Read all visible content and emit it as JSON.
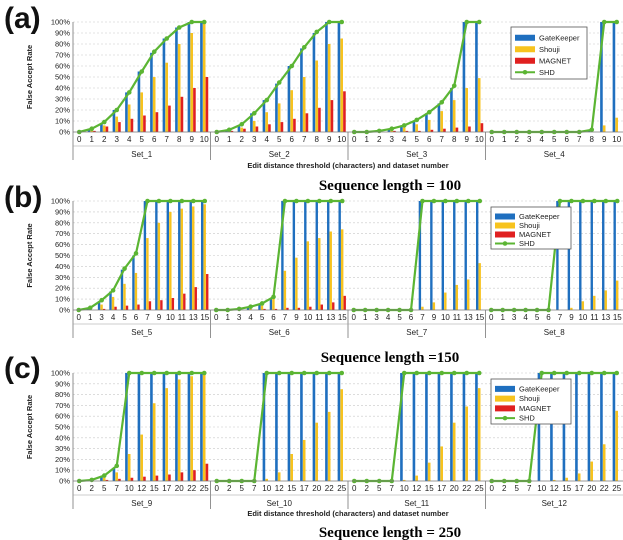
{
  "colors": {
    "GateKeeper": "#1f6fbf",
    "Shouji": "#f7c31e",
    "MAGNET": "#e02020",
    "SHD": "#5bb533"
  },
  "chart_data": [
    {
      "panel": "(a)",
      "type": "bar",
      "caption": "Sequence length = 100",
      "xlabel": "Edit distance threshold (characters) and dataset number",
      "ylabel": "False Accept Rate",
      "ylim": [
        0,
        100
      ],
      "yticks": [
        "0%",
        "10%",
        "20%",
        "30%",
        "40%",
        "50%",
        "60%",
        "70%",
        "80%",
        "90%",
        "100%"
      ],
      "legend": [
        "GateKeeper",
        "Shouji",
        "MAGNET",
        "SHD"
      ],
      "legend_position": "top-right",
      "categories": [
        "0",
        "1",
        "2",
        "3",
        "4",
        "5",
        "6",
        "7",
        "8",
        "9",
        "10"
      ],
      "groups": [
        {
          "name": "Set_1",
          "GateKeeper": [
            0,
            3,
            8,
            20,
            36,
            55,
            72,
            85,
            95,
            100,
            100
          ],
          "Shouji": [
            0,
            2,
            6,
            14,
            25,
            36,
            50,
            63,
            80,
            90,
            100
          ],
          "MAGNET": [
            0,
            1,
            5,
            9,
            12,
            15,
            18,
            24,
            32,
            40,
            50
          ],
          "SHD": [
            0,
            3,
            9,
            20,
            36,
            55,
            73,
            85,
            95,
            100,
            100
          ]
        },
        {
          "name": "Set_2",
          "GateKeeper": [
            0,
            2,
            6,
            17,
            29,
            44,
            60,
            76,
            90,
            100,
            100
          ],
          "Shouji": [
            0,
            1,
            4,
            10,
            18,
            26,
            38,
            50,
            65,
            80,
            85
          ],
          "MAGNET": [
            0,
            1,
            3,
            5,
            7,
            9,
            12,
            17,
            22,
            29,
            37
          ],
          "SHD": [
            0,
            2,
            7,
            17,
            29,
            45,
            60,
            77,
            91,
            100,
            100
          ]
        },
        {
          "name": "Set_3",
          "GateKeeper": [
            0,
            0,
            1,
            3,
            6,
            10,
            17,
            26,
            40,
            100,
            100
          ],
          "Shouji": [
            0,
            0,
            1,
            2,
            4,
            7,
            11,
            19,
            29,
            40,
            49
          ],
          "MAGNET": [
            0,
            0,
            0,
            1,
            1,
            1,
            2,
            3,
            4,
            5,
            8
          ],
          "SHD": [
            0,
            0,
            1,
            3,
            6,
            11,
            18,
            27,
            42,
            100,
            100
          ]
        },
        {
          "name": "Set_4",
          "GateKeeper": [
            0,
            0,
            0,
            0,
            0,
            0,
            0,
            0,
            1,
            100,
            100
          ],
          "Shouji": [
            0,
            0,
            0,
            0,
            0,
            0,
            0,
            0,
            0,
            6,
            13
          ],
          "MAGNET": [
            0,
            0,
            0,
            0,
            0,
            0,
            0,
            0,
            0,
            0,
            0
          ],
          "SHD": [
            0,
            0,
            0,
            0,
            0,
            0,
            0,
            0,
            2,
            100,
            100
          ]
        }
      ]
    },
    {
      "panel": "(b)",
      "type": "bar",
      "caption": "Sequence length =150",
      "xlabel": "",
      "ylabel": "False Accept Rate",
      "ylim": [
        0,
        100
      ],
      "yticks": [
        "0%",
        "10%",
        "20%",
        "30%",
        "40%",
        "50%",
        "60%",
        "70%",
        "80%",
        "90%",
        "100%"
      ],
      "legend": [
        "GateKeeper",
        "Shouji",
        "MAGNET",
        "SHD"
      ],
      "legend_position": "top-center",
      "categories": [
        "0",
        "1",
        "3",
        "4",
        "5",
        "6",
        "7",
        "9",
        "10",
        "11",
        "13",
        "15"
      ],
      "groups": [
        {
          "name": "Set_5",
          "GateKeeper": [
            0,
            2,
            8,
            17,
            37,
            50,
            100,
            100,
            100,
            100,
            100,
            100
          ],
          "Shouji": [
            0,
            1,
            5,
            12,
            24,
            34,
            66,
            80,
            90,
            93,
            95,
            97
          ],
          "MAGNET": [
            0,
            0,
            1,
            3,
            4,
            5,
            8,
            9,
            11,
            15,
            21,
            33
          ],
          "SHD": [
            0,
            2,
            9,
            18,
            38,
            52,
            100,
            100,
            100,
            100,
            100,
            100
          ]
        },
        {
          "name": "Set_6",
          "GateKeeper": [
            0,
            0,
            1,
            2,
            5,
            10,
            100,
            100,
            100,
            100,
            100,
            100
          ],
          "Shouji": [
            0,
            0,
            1,
            1,
            4,
            13,
            36,
            48,
            63,
            66,
            72,
            74
          ],
          "MAGNET": [
            0,
            0,
            0,
            0,
            1,
            1,
            2,
            2,
            3,
            5,
            7,
            13
          ],
          "SHD": [
            0,
            0,
            1,
            3,
            6,
            12,
            100,
            100,
            100,
            100,
            100,
            100
          ]
        },
        {
          "name": "Set_7",
          "GateKeeper": [
            0,
            0,
            0,
            0,
            0,
            0,
            100,
            100,
            100,
            100,
            100,
            100
          ],
          "Shouji": [
            0,
            0,
            0,
            0,
            0,
            0,
            3,
            7,
            16,
            23,
            28,
            43
          ],
          "MAGNET": [
            0,
            0,
            0,
            0,
            0,
            0,
            0,
            0,
            0,
            0,
            0,
            0
          ],
          "SHD": [
            0,
            0,
            0,
            0,
            0,
            0,
            100,
            100,
            100,
            100,
            100,
            100
          ]
        },
        {
          "name": "Set_8",
          "GateKeeper": [
            0,
            0,
            0,
            0,
            0,
            0,
            100,
            100,
            100,
            100,
            100,
            100
          ],
          "Shouji": [
            0,
            0,
            0,
            0,
            0,
            0,
            0,
            2,
            8,
            13,
            18,
            27
          ],
          "MAGNET": [
            0,
            0,
            0,
            0,
            0,
            0,
            0,
            0,
            0,
            0,
            0,
            0
          ],
          "SHD": [
            0,
            0,
            0,
            0,
            0,
            0,
            100,
            100,
            100,
            100,
            100,
            100
          ]
        }
      ]
    },
    {
      "panel": "(c)",
      "type": "bar",
      "caption": "Sequence length = 250",
      "xlabel": "Edit distance threshold (characters) and dataset number",
      "ylabel": "False Accept Rate",
      "ylim": [
        0,
        100
      ],
      "yticks": [
        "0%",
        "10%",
        "20%",
        "30%",
        "40%",
        "50%",
        "60%",
        "70%",
        "80%",
        "90%",
        "100%"
      ],
      "legend": [
        "GateKeeper",
        "Shouji",
        "MAGNET",
        "SHD"
      ],
      "legend_position": "top-right",
      "categories": [
        "0",
        "2",
        "5",
        "7",
        "10",
        "12",
        "15",
        "17",
        "20",
        "22",
        "25"
      ],
      "groups": [
        {
          "name": "Set_9",
          "GateKeeper": [
            0,
            1,
            4,
            12,
            100,
            100,
            100,
            100,
            100,
            100,
            100
          ],
          "Shouji": [
            0,
            1,
            3,
            8,
            25,
            43,
            72,
            86,
            94,
            97,
            100
          ],
          "MAGNET": [
            0,
            0,
            1,
            2,
            3,
            4,
            5,
            6,
            8,
            10,
            16
          ],
          "SHD": [
            0,
            1,
            5,
            14,
            100,
            100,
            100,
            100,
            100,
            100,
            100
          ]
        },
        {
          "name": "Set_10",
          "GateKeeper": [
            0,
            0,
            0,
            0,
            100,
            100,
            100,
            100,
            100,
            100,
            100
          ],
          "Shouji": [
            0,
            0,
            0,
            0,
            2,
            8,
            25,
            38,
            54,
            64,
            85
          ],
          "MAGNET": [
            0,
            0,
            0,
            0,
            0,
            0,
            0,
            0,
            0,
            0,
            0
          ],
          "SHD": [
            0,
            0,
            0,
            0,
            100,
            100,
            100,
            100,
            100,
            100,
            100
          ]
        },
        {
          "name": "Set_11",
          "GateKeeper": [
            0,
            0,
            0,
            0,
            100,
            100,
            100,
            100,
            100,
            100,
            100
          ],
          "Shouji": [
            0,
            0,
            0,
            0,
            1,
            5,
            17,
            32,
            54,
            69,
            86
          ],
          "MAGNET": [
            0,
            0,
            0,
            0,
            0,
            0,
            0,
            0,
            0,
            0,
            0
          ],
          "SHD": [
            0,
            0,
            0,
            0,
            100,
            100,
            100,
            100,
            100,
            100,
            100
          ]
        },
        {
          "name": "Set_12",
          "GateKeeper": [
            0,
            0,
            0,
            0,
            100,
            100,
            100,
            100,
            100,
            100,
            100
          ],
          "Shouji": [
            0,
            0,
            0,
            0,
            0,
            1,
            3,
            7,
            18,
            34,
            65
          ],
          "MAGNET": [
            0,
            0,
            0,
            0,
            0,
            0,
            0,
            0,
            0,
            0,
            0
          ],
          "SHD": [
            0,
            0,
            0,
            0,
            100,
            100,
            100,
            100,
            100,
            100,
            100
          ]
        }
      ]
    }
  ]
}
